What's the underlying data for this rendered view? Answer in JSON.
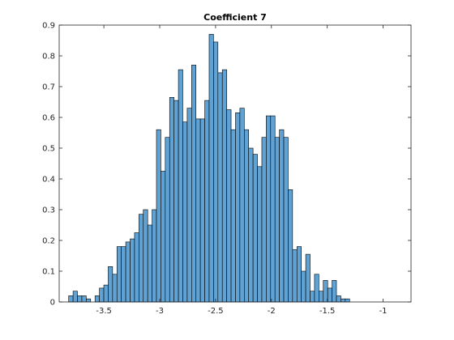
{
  "chart_data": {
    "type": "bar",
    "title": "Coefficient 7",
    "xlabel": "",
    "ylabel": "",
    "xlim": [
      -3.9,
      -0.75
    ],
    "ylim": [
      0,
      0.9
    ],
    "xticks": [
      -3.5,
      -3,
      -2.5,
      -2,
      -1.5,
      -1
    ],
    "xtick_labels": [
      "-3.5",
      "-3",
      "-2.5",
      "-2",
      "-1.5",
      "-1"
    ],
    "yticks": [
      0,
      0.1,
      0.2,
      0.3,
      0.4,
      0.5,
      0.6,
      0.7,
      0.8,
      0.9
    ],
    "ytick_labels": [
      "0",
      "0.1",
      "0.2",
      "0.3",
      "0.4",
      "0.5",
      "0.6",
      "0.7",
      "0.8",
      "0.9"
    ],
    "grid": false,
    "bin_start": -3.815,
    "bin_width": 0.0393,
    "values": [
      0.02,
      0.035,
      0.02,
      0.02,
      0.01,
      0,
      0.02,
      0.045,
      0.055,
      0.115,
      0.09,
      0.18,
      0.18,
      0.195,
      0.205,
      0.225,
      0.285,
      0.3,
      0.25,
      0.3,
      0.56,
      0.425,
      0.535,
      0.665,
      0.655,
      0.755,
      0.585,
      0.63,
      0.77,
      0.595,
      0.595,
      0.655,
      0.87,
      0.845,
      0.745,
      0.755,
      0.625,
      0.56,
      0.615,
      0.63,
      0.56,
      0.5,
      0.48,
      0.44,
      0.535,
      0.605,
      0.605,
      0.535,
      0.56,
      0.535,
      0.365,
      0.17,
      0.18,
      0.1,
      0.155,
      0.035,
      0.09,
      0.035,
      0.07,
      0.045,
      0.07,
      0.02,
      0.01,
      0.01
    ],
    "bar_color": "#5fa2d3",
    "edge_color": "#000000"
  }
}
